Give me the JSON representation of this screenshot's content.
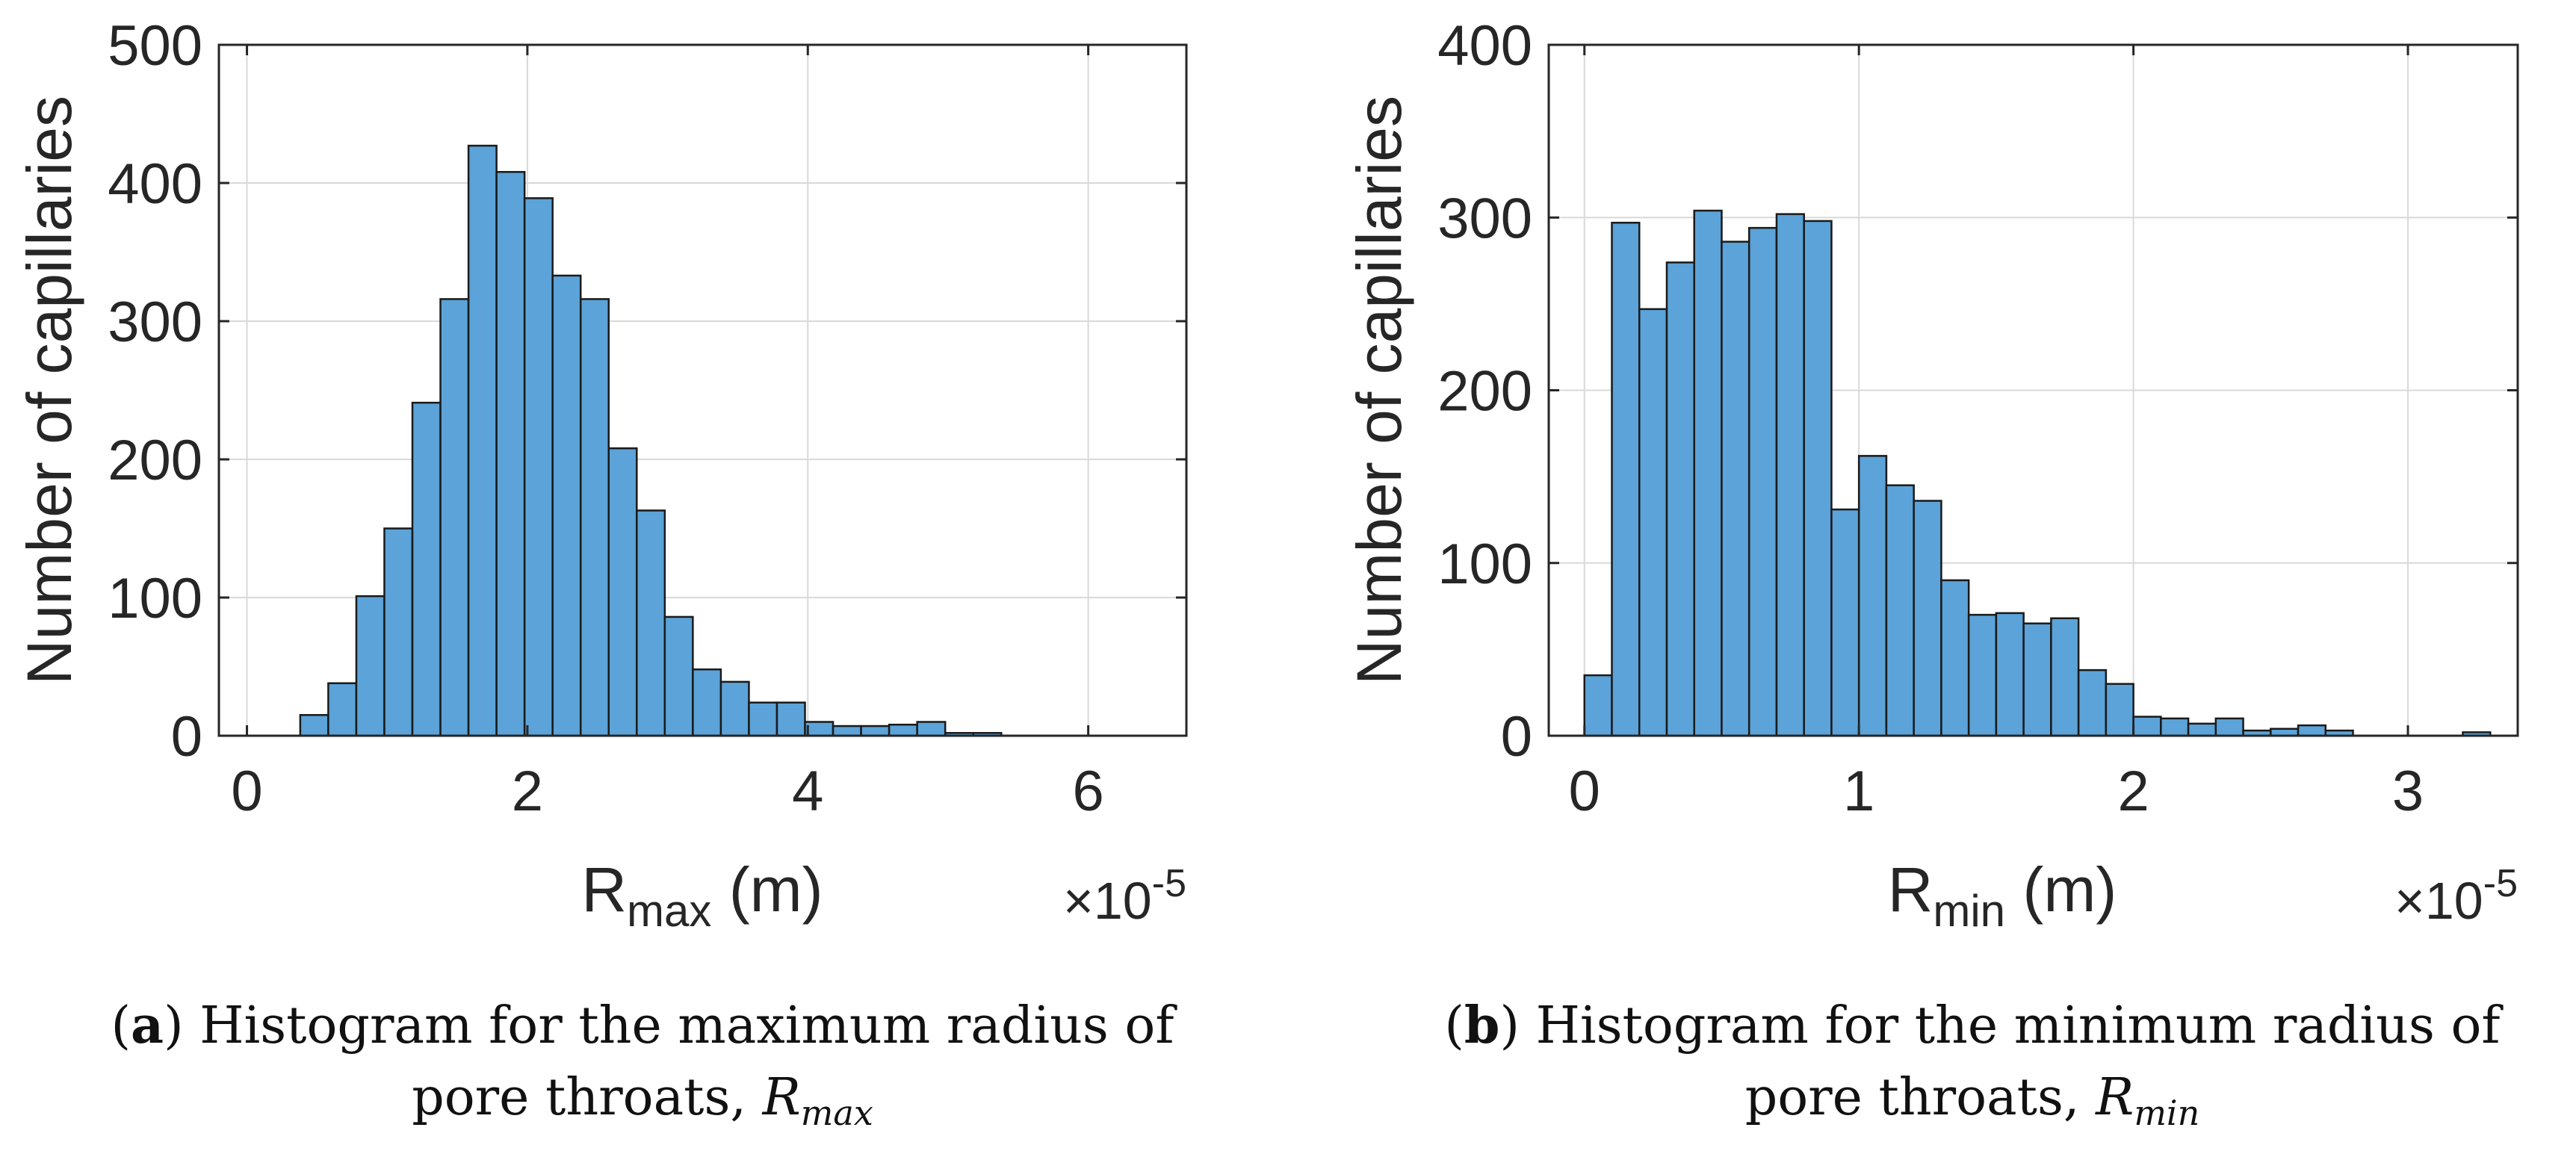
{
  "chart_data": [
    {
      "type": "bar",
      "panel": "a",
      "ylabel": "Number of capillaries",
      "xlabel_main": "R",
      "xlabel_sub": "max",
      "xlabel_unit": " (m)",
      "exponent_prefix": "×10",
      "exponent_power": "-5",
      "xlim": [
        -0.2,
        6.7
      ],
      "ylim": [
        0,
        500
      ],
      "xticks": [
        0,
        2,
        4,
        6
      ],
      "xtick_labels": [
        "0",
        "2",
        "4",
        "6"
      ],
      "yticks": [
        0,
        100,
        200,
        300,
        400,
        500
      ],
      "ytick_labels": [
        "0",
        "100",
        "200",
        "300",
        "400",
        "500"
      ],
      "grid": true,
      "bin_start": 0.38,
      "bin_width": 0.2,
      "values": [
        15,
        38,
        101,
        150,
        241,
        316,
        427,
        408,
        389,
        333,
        316,
        208,
        163,
        86,
        48,
        39,
        24,
        24,
        10,
        7,
        7,
        8,
        10,
        2,
        2,
        0,
        0,
        0,
        0,
        0,
        0
      ]
    },
    {
      "type": "bar",
      "panel": "b",
      "ylabel": "Number of capillaries",
      "xlabel_main": "R",
      "xlabel_sub": "min",
      "xlabel_unit": " (m)",
      "exponent_prefix": "×10",
      "exponent_power": "-5",
      "xlim": [
        -0.13,
        3.4
      ],
      "ylim": [
        0,
        400
      ],
      "xticks": [
        0,
        1,
        2,
        3
      ],
      "xtick_labels": [
        "0",
        "1",
        "2",
        "3"
      ],
      "yticks": [
        0,
        100,
        200,
        300,
        400
      ],
      "ytick_labels": [
        "0",
        "100",
        "200",
        "300",
        "400"
      ],
      "grid": true,
      "bin_start": 0.0,
      "bin_width": 0.1,
      "values": [
        35,
        297,
        247,
        274,
        304,
        286,
        294,
        302,
        298,
        131,
        162,
        145,
        136,
        90,
        70,
        71,
        65,
        68,
        38,
        30,
        11,
        10,
        7,
        10,
        3,
        4,
        6,
        3,
        0,
        0,
        0,
        0,
        2
      ]
    }
  ],
  "captions": [
    {
      "label": "a",
      "text_before": ") Histogram for the maximum radius of pore throats, ",
      "symbol": "R",
      "symbol_sub": "max"
    },
    {
      "label": "b",
      "text_before": ") Histogram for the minimum radius of pore throats, ",
      "symbol": "R",
      "symbol_sub": "min"
    }
  ],
  "colors": {
    "bar_fill": "#5ba3d8",
    "bar_edge": "#1a1a1a",
    "grid": "#d9d9d9",
    "axis": "#262626",
    "text": "#262626"
  }
}
